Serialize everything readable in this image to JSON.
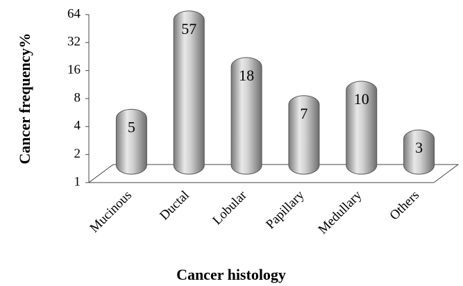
{
  "chart_data": {
    "type": "bar",
    "xlabel": "Cancer histology",
    "ylabel": "Cancer frequency%",
    "categories": [
      "Mucinous",
      "Ductal",
      "Lobular",
      "Papillary",
      "Medullary",
      "Others"
    ],
    "values": [
      5,
      57,
      18,
      7,
      10,
      3
    ],
    "color": "#b0b0b0",
    "log_scale": true,
    "log_base": 2,
    "ylim": [
      1,
      64
    ],
    "yticks": [
      1,
      2,
      4,
      8,
      16,
      32,
      64
    ],
    "grid": false
  }
}
